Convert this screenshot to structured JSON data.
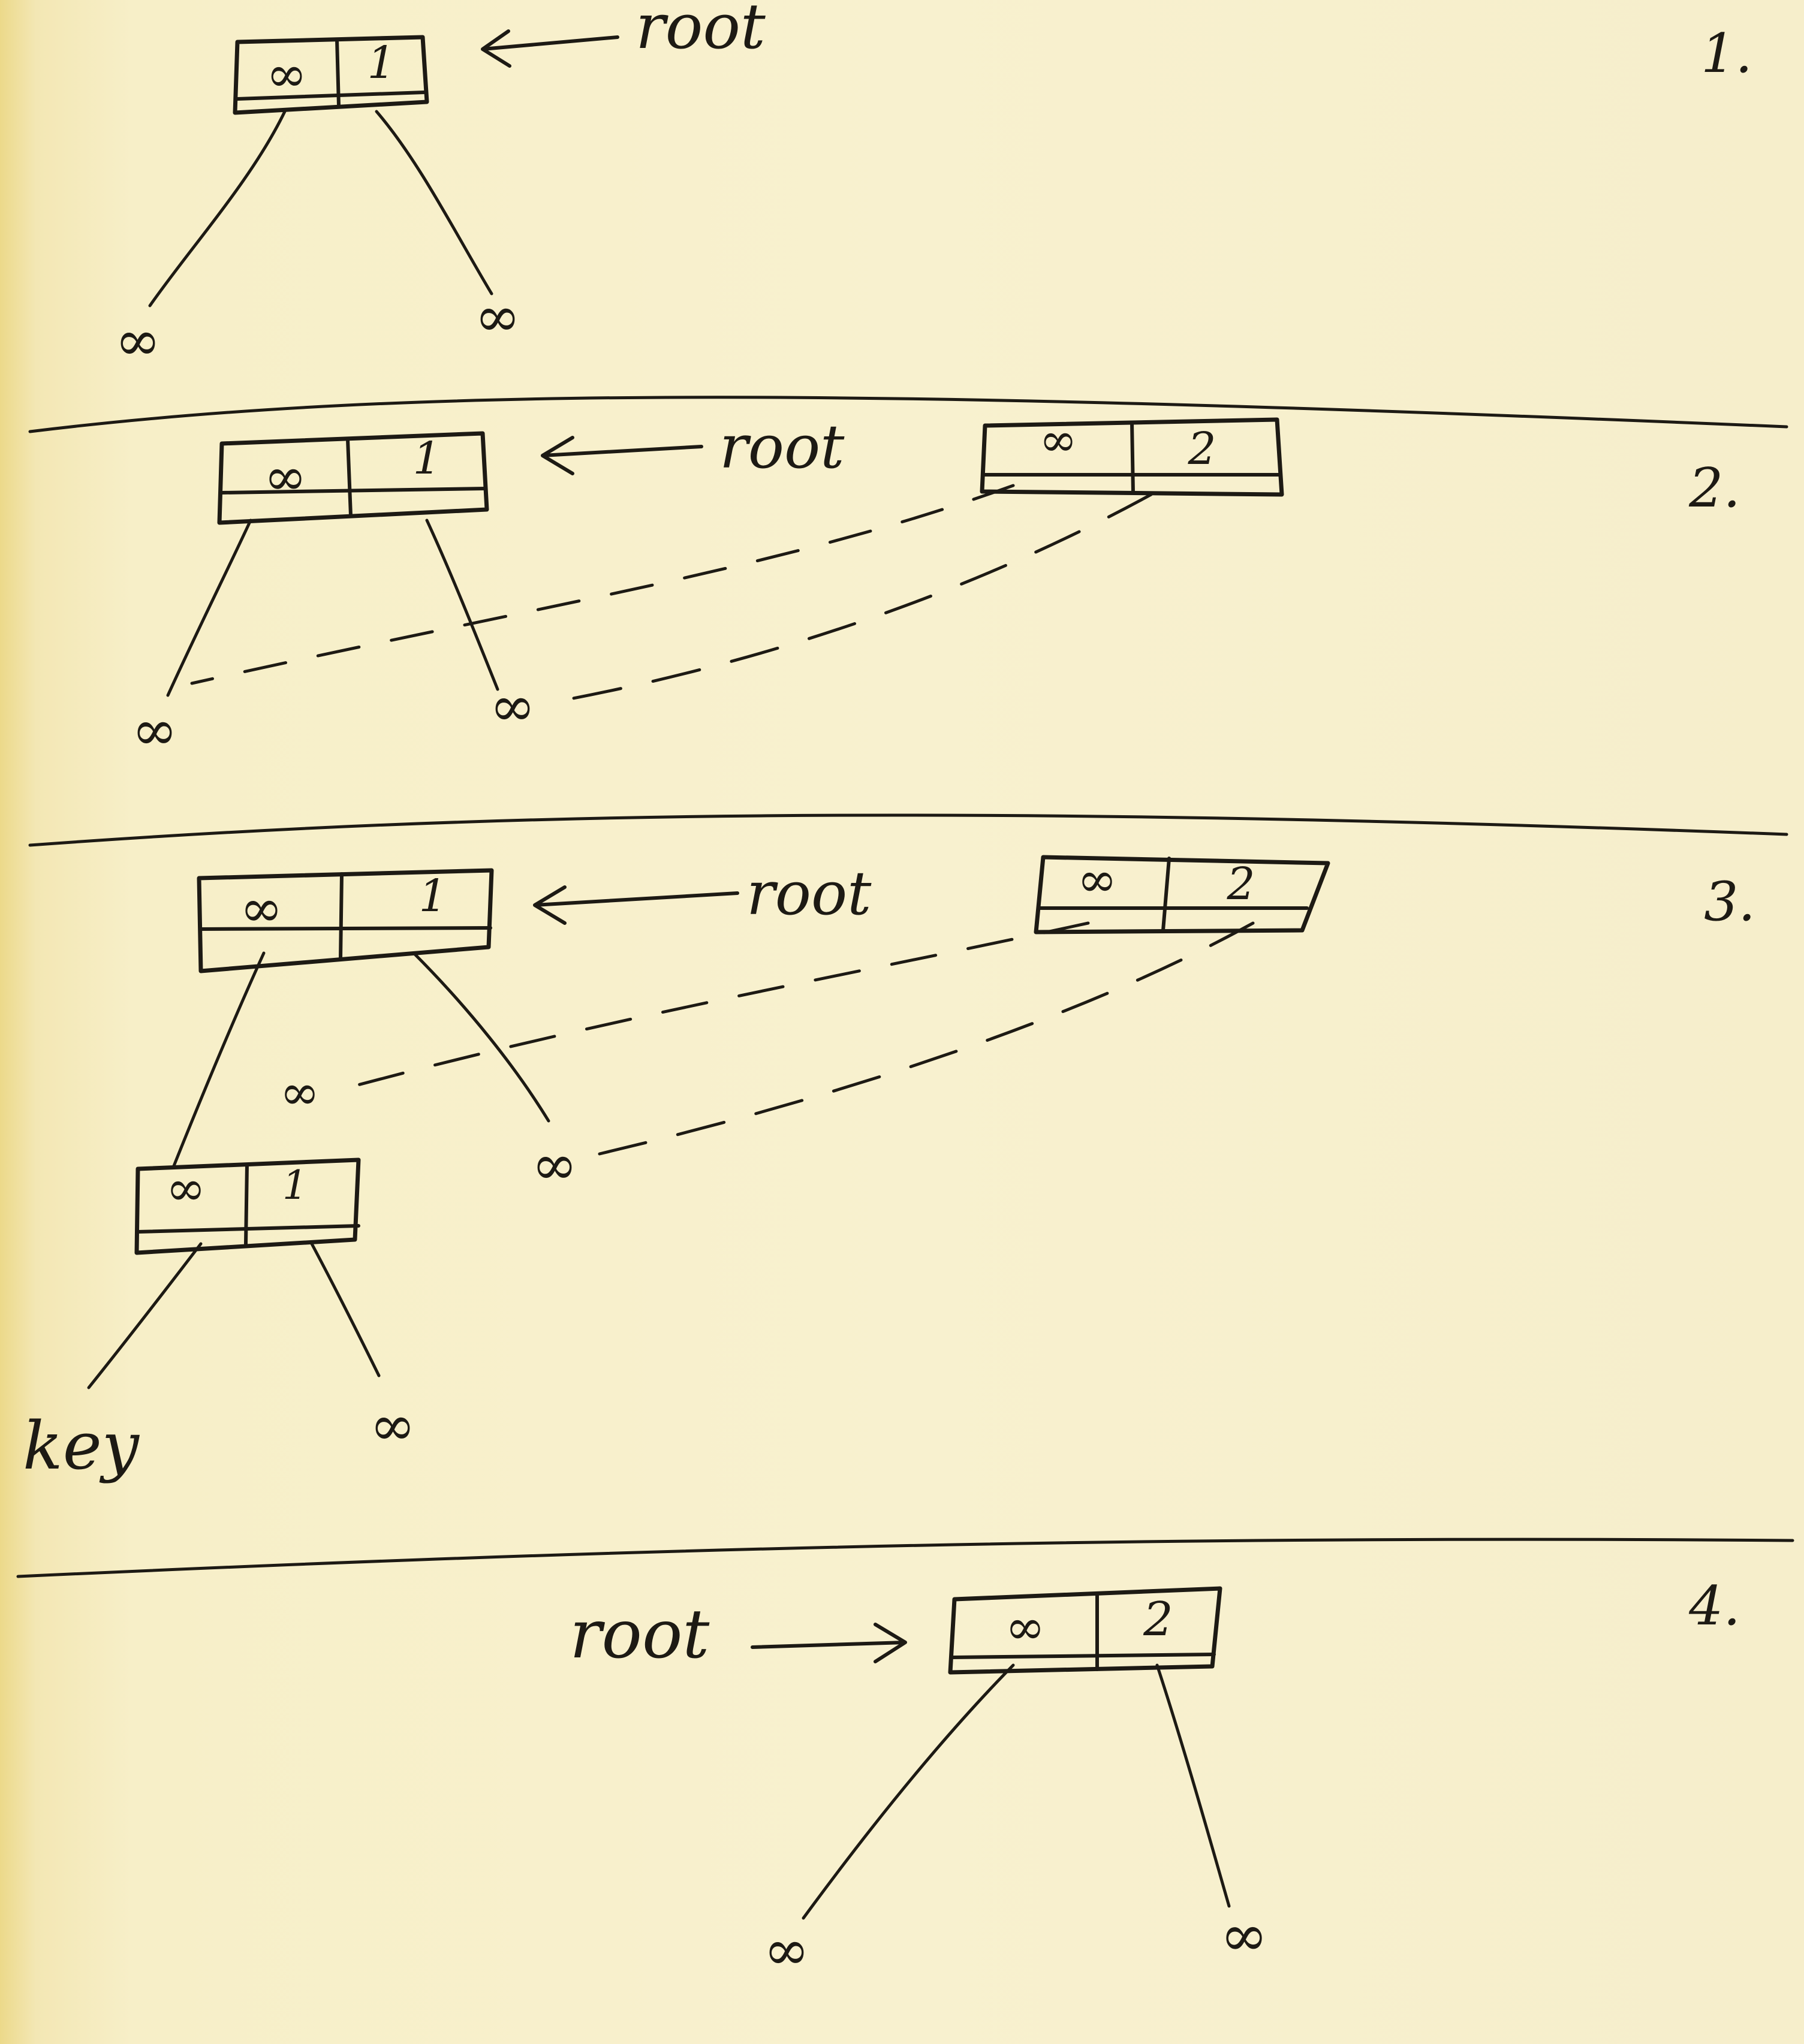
{
  "diagram": {
    "panels": [
      {
        "number": "1.",
        "pointer_label": "root",
        "nodes": [
          {
            "left": "∞",
            "right": "1",
            "children": [
              "∞",
              "∞"
            ],
            "role": "root"
          }
        ]
      },
      {
        "number": "2.",
        "pointer_label": "root",
        "nodes": [
          {
            "left": "∞",
            "right": "1",
            "children": [
              "∞",
              "∞"
            ],
            "role": "root"
          },
          {
            "left": "∞",
            "right": "2",
            "role": "new node, dashed links to root's leaves"
          }
        ]
      },
      {
        "number": "3.",
        "pointer_label": "root",
        "nodes": [
          {
            "left": "∞",
            "right": "1",
            "children": [
              "∞",
              "∞"
            ],
            "role": "root"
          },
          {
            "left": "∞",
            "right": "2",
            "role": "dashed links"
          },
          {
            "left": "∞",
            "right": "1",
            "children": [
              "key",
              "∞"
            ],
            "role": "child node"
          }
        ]
      },
      {
        "number": "4.",
        "pointer_label": "root",
        "nodes": [
          {
            "left": "∞",
            "right": "2",
            "children": [
              "∞",
              "∞"
            ],
            "role": "root"
          }
        ]
      }
    ]
  }
}
